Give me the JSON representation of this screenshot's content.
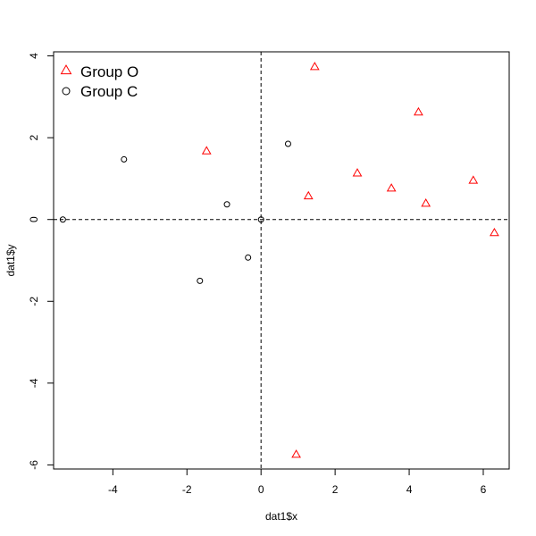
{
  "chart_data": {
    "type": "scatter",
    "title": "",
    "xlabel": "dat1$x",
    "ylabel": "dat1$y",
    "xlim": [
      -5.6,
      6.7
    ],
    "ylim": [
      -6.1,
      4.1
    ],
    "x_ticks": [
      -4,
      -2,
      0,
      2,
      4,
      6
    ],
    "y_ticks": [
      -6,
      -4,
      -2,
      0,
      2,
      4
    ],
    "grid": false,
    "reference_lines": [
      {
        "orientation": "vertical",
        "value": 0,
        "style": "dashed"
      },
      {
        "orientation": "horizontal",
        "value": 0,
        "style": "dashed"
      }
    ],
    "legend": {
      "position": "top-left"
    },
    "series": [
      {
        "name": "Group O",
        "marker": "triangle",
        "color": "#FF0000",
        "points": [
          {
            "x": 1.45,
            "y": 3.73
          },
          {
            "x": 4.25,
            "y": 2.62
          },
          {
            "x": -1.47,
            "y": 1.67
          },
          {
            "x": 2.6,
            "y": 1.13
          },
          {
            "x": 5.73,
            "y": 0.95
          },
          {
            "x": 3.52,
            "y": 0.76
          },
          {
            "x": 1.28,
            "y": 0.57
          },
          {
            "x": 4.45,
            "y": 0.39
          },
          {
            "x": 6.3,
            "y": -0.33
          },
          {
            "x": 0.95,
            "y": -5.75
          }
        ]
      },
      {
        "name": "Group C",
        "marker": "circle",
        "color": "#000000",
        "points": [
          {
            "x": -5.35,
            "y": 0.0
          },
          {
            "x": -3.7,
            "y": 1.47
          },
          {
            "x": 0.73,
            "y": 1.85
          },
          {
            "x": -0.92,
            "y": 0.37
          },
          {
            "x": 0.0,
            "y": 0.0
          },
          {
            "x": -0.35,
            "y": -0.93
          },
          {
            "x": -1.65,
            "y": -1.5
          }
        ]
      }
    ]
  }
}
